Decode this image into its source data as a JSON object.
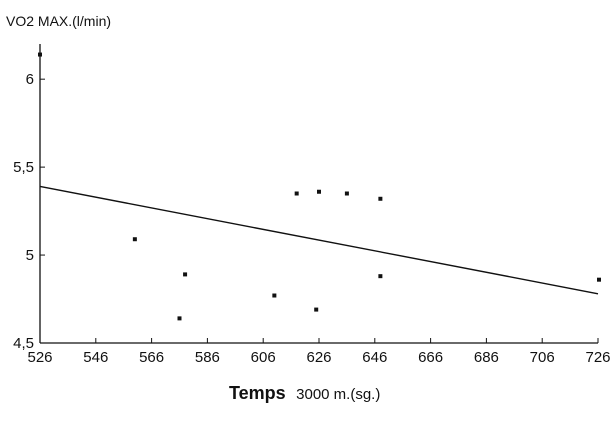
{
  "chart_data": {
    "type": "scatter",
    "ylabel": "VO2 MAX.(l/min)",
    "xlabel": {
      "bold": "Temps",
      "rest": "3000 m.(sg.)"
    },
    "xlim": [
      526,
      726
    ],
    "ylim": [
      4.5,
      6.2
    ],
    "x_ticks": [
      526,
      546,
      566,
      586,
      606,
      626,
      646,
      666,
      686,
      706,
      726
    ],
    "x_tick_labels": [
      "526",
      "546",
      "566",
      "586",
      "606",
      "626",
      "646",
      "666",
      "686",
      "706",
      "726"
    ],
    "y_ticks": [
      4.5,
      5,
      5.5,
      6
    ],
    "y_tick_labels": [
      "4,5",
      "5",
      "5,5",
      "6"
    ],
    "points": [
      {
        "x": 526,
        "y": 6.14
      },
      {
        "x": 560,
        "y": 5.09
      },
      {
        "x": 576,
        "y": 4.64
      },
      {
        "x": 578,
        "y": 4.89
      },
      {
        "x": 610,
        "y": 4.77
      },
      {
        "x": 618,
        "y": 5.35
      },
      {
        "x": 625,
        "y": 4.69
      },
      {
        "x": 626,
        "y": 5.36
      },
      {
        "x": 636,
        "y": 5.35
      },
      {
        "x": 648,
        "y": 5.32
      },
      {
        "x": 648,
        "y": 4.88
      },
      {
        "x": 727,
        "y": 4.86
      }
    ],
    "trendline": {
      "x": [
        526,
        726
      ],
      "y": [
        5.39,
        4.78
      ]
    },
    "grid": false
  }
}
